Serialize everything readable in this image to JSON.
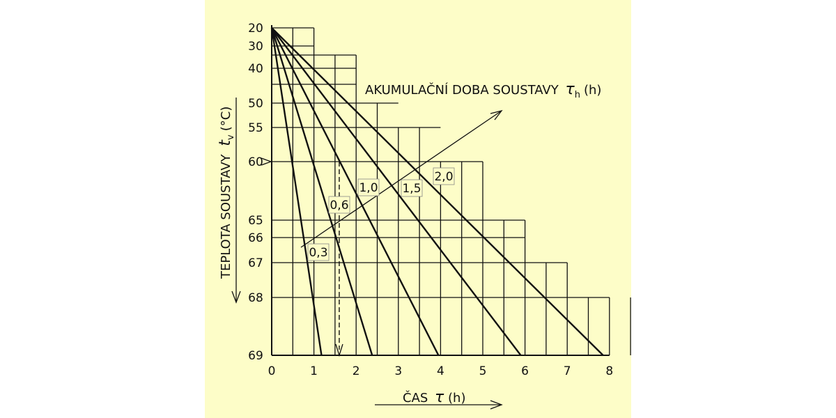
{
  "chart_data": {
    "type": "line",
    "title": "",
    "xlabel": "ČAS τ (h)",
    "ylabel": "TEPLOTA SOUSTAVY t_v (°C)",
    "xlabel_text": "ČAS",
    "xlabel_symbol": "τ",
    "xlabel_unit": "(h)",
    "ylabel_text": "TEPLOTA SOUSTAVY",
    "ylabel_symbol": "t",
    "ylabel_sub": "v",
    "ylabel_unit": "(°C)",
    "x_ticks": [
      0,
      1,
      2,
      3,
      4,
      5,
      6,
      7,
      8
    ],
    "y_ticks": [
      20,
      30,
      40,
      50,
      55,
      60,
      65,
      66,
      67,
      68,
      69
    ],
    "xlim": [
      0,
      8
    ],
    "ylim": [
      20,
      69
    ],
    "y_scale": "nonlinear (decreasing downward)",
    "grid": true,
    "annotation": {
      "text": "AKUMULAČNÍ DOBA SOUSTAVY",
      "symbol": "τ",
      "sub": "h",
      "unit": "(h)"
    },
    "series": [
      {
        "label": "0,3",
        "points": [
          [
            0,
            20
          ],
          [
            1.18,
            69
          ]
        ]
      },
      {
        "label": "0,6",
        "points": [
          [
            0,
            20
          ],
          [
            2.38,
            69
          ]
        ]
      },
      {
        "label": "1,0",
        "points": [
          [
            0,
            20
          ],
          [
            3.95,
            69
          ]
        ]
      },
      {
        "label": "1,5",
        "points": [
          [
            0,
            20
          ],
          [
            5.9,
            69
          ]
        ]
      },
      {
        "label": "2,0",
        "points": [
          [
            0,
            20
          ],
          [
            7.85,
            69
          ]
        ]
      }
    ],
    "readout": {
      "x": 1.6,
      "y_from": 60,
      "y_to": 69,
      "style": "dashed arrow"
    }
  }
}
